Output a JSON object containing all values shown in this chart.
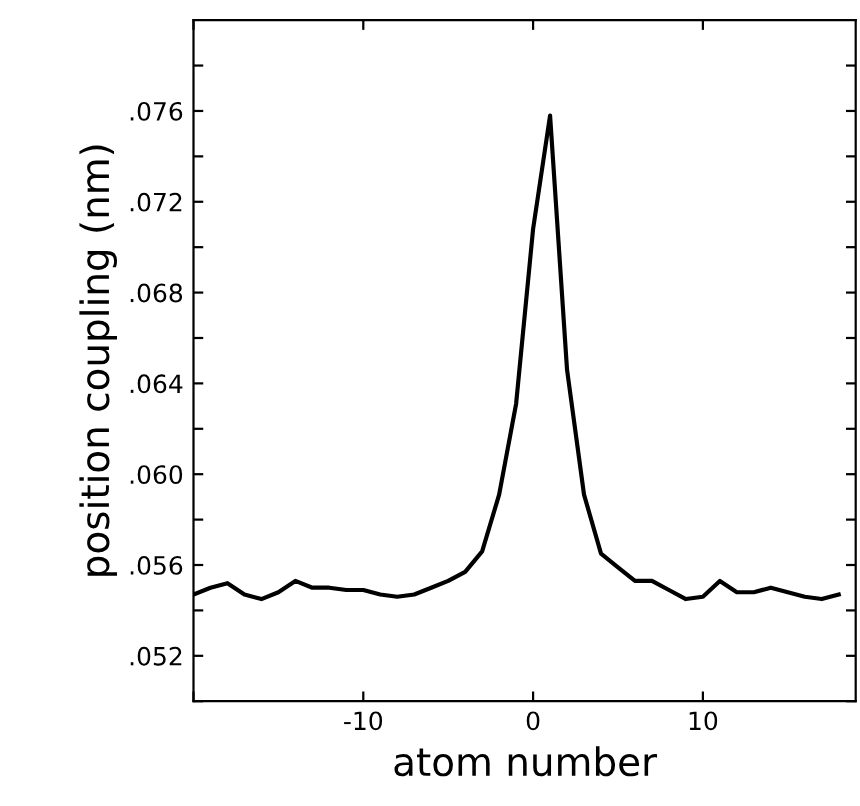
{
  "chart_data": {
    "type": "line",
    "xlabel": "atom number",
    "ylabel": "position coupling (nm)",
    "x": [
      -20,
      -19,
      -18,
      -17,
      -16,
      -15,
      -14,
      -13,
      -12,
      -11,
      -10,
      -9,
      -8,
      -7,
      -6,
      -5,
      -4,
      -3,
      -2,
      -1,
      0,
      1,
      2,
      3,
      4,
      5,
      6,
      7,
      8,
      9,
      10,
      11,
      12,
      13,
      14,
      15,
      16,
      17,
      18
    ],
    "series": [
      {
        "color": "#000000",
        "values": [
          0.0547,
          0.055,
          0.0552,
          0.0547,
          0.0545,
          0.0548,
          0.0553,
          0.055,
          0.055,
          0.0549,
          0.0549,
          0.0547,
          0.0546,
          0.0547,
          0.055,
          0.0553,
          0.0557,
          0.0566,
          0.0591,
          0.0631,
          0.0708,
          0.0758,
          0.0646,
          0.0591,
          0.0565,
          0.0559,
          0.0553,
          0.0553,
          0.0549,
          0.0545,
          0.0546,
          0.0553,
          0.0548,
          0.0548,
          0.055,
          0.0548,
          0.0546,
          0.0545,
          0.0547
        ]
      }
    ],
    "xlim": [
      -20,
      19
    ],
    "ylim": [
      0.05,
      0.08
    ],
    "xticks": [
      {
        "value": -20,
        "label": null
      },
      {
        "value": -10,
        "label": "-10"
      },
      0,
      10
    ],
    "yticks": [
      {
        "value": 0.05,
        "label": null
      },
      {
        "value": 0.052,
        "label": ".052"
      },
      {
        "value": 0.054,
        "label": null
      },
      {
        "value": 0.056,
        "label": ".056"
      },
      {
        "value": 0.058,
        "label": null
      },
      {
        "value": 0.06,
        "label": ".060"
      },
      {
        "value": 0.062,
        "label": null
      },
      {
        "value": 0.064,
        "label": ".064"
      },
      {
        "value": 0.066,
        "label": null
      },
      {
        "value": 0.068,
        "label": ".068"
      },
      {
        "value": 0.07,
        "label": null
      },
      {
        "value": 0.072,
        "label": ".072"
      },
      {
        "value": 0.074,
        "label": null
      },
      {
        "value": 0.076,
        "label": ".076"
      },
      {
        "value": 0.078,
        "label": null
      }
    ],
    "grid": false,
    "legend": false,
    "marker": "none",
    "line_style": "solid"
  }
}
